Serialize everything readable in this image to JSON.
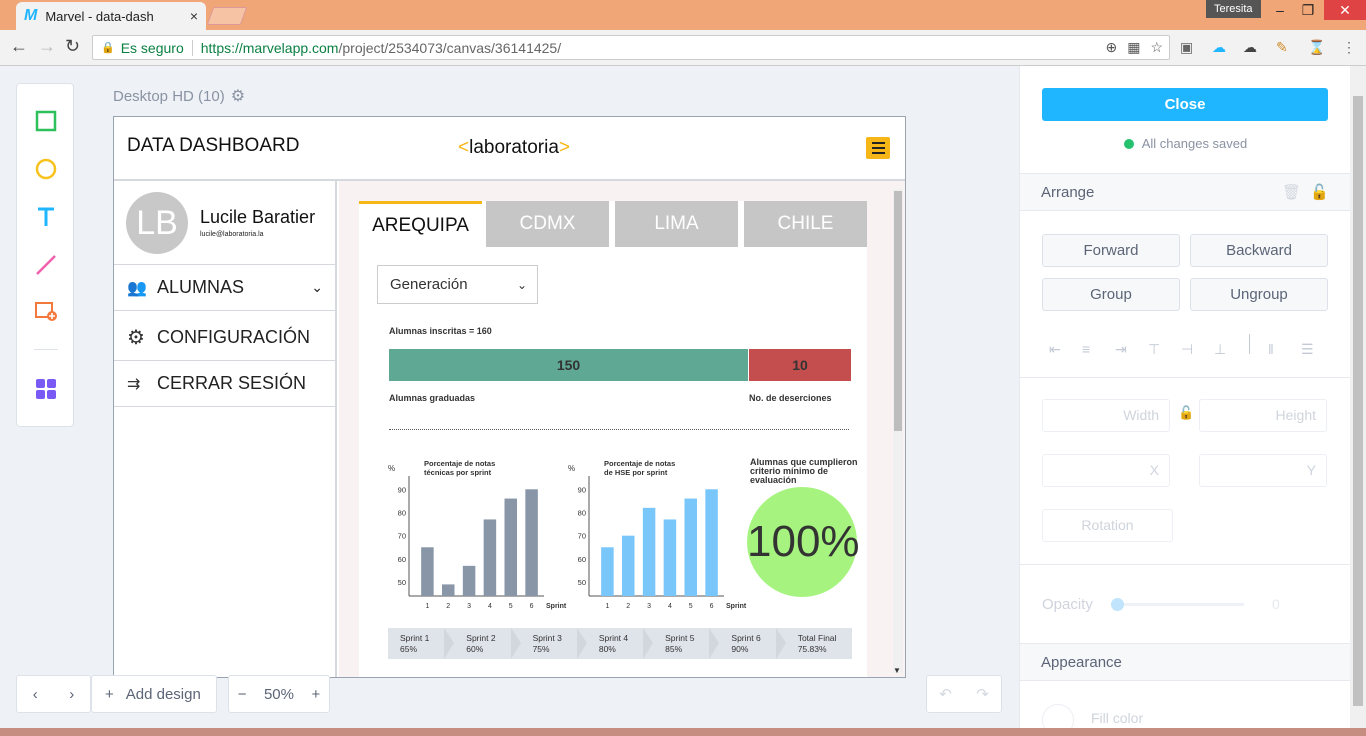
{
  "browser": {
    "tab_title": "Marvel - data-dash",
    "tab_close": "×",
    "window_user": "Teresita",
    "security_label": "Es seguro",
    "url_host": "https://marvelapp.com",
    "url_path": "/project/2534073/canvas/36141425/"
  },
  "canvas": {
    "frame_label": "Desktop HD (10)",
    "zoom": "50%",
    "add_design_label": "Add design"
  },
  "dashboard": {
    "title": "DATA DASHBOARD",
    "brand": "laboratoria",
    "user": {
      "initials": "LB",
      "name": "Lucile Baratier",
      "email": "lucile@laboratoria.la"
    },
    "menu": [
      {
        "label": "ALUMNAS"
      },
      {
        "label": "CONFIGURACIÓN"
      },
      {
        "label": "CERRAR SESIÓN"
      }
    ],
    "tabs": [
      "AREQUIPA",
      "CDMX",
      "LIMA",
      "CHILE"
    ],
    "generation_select": "Generación",
    "enrolled_label": "Alumnas inscritas = 160",
    "graduated_value": "150",
    "dropout_value": "10",
    "graduated_label": "Alumnas graduadas",
    "dropout_label": "No. de deserciones",
    "criteria_label_1": "Alumnas que cumplieron",
    "criteria_label_2": "criterio mínimo de evaluación",
    "criteria_value": "100%",
    "sprints": [
      {
        "name": "Sprint 1",
        "value": "65%"
      },
      {
        "name": "Sprint 2",
        "value": "60%"
      },
      {
        "name": "Sprint 3",
        "value": "75%"
      },
      {
        "name": "Sprint 4",
        "value": "80%"
      },
      {
        "name": "Sprint 5",
        "value": "85%"
      },
      {
        "name": "Sprint 6",
        "value": "90%"
      },
      {
        "name": "Total Final",
        "value": "75.83%"
      }
    ]
  },
  "chart_data": [
    {
      "type": "bar",
      "title": "Porcentaje de notas técnicas por sprint",
      "title_line1": "Porcentaje de notas",
      "title_line2": "técnicas por sprint",
      "ylabel": "%",
      "xlabel": "Sprint",
      "categories": [
        "1",
        "2",
        "3",
        "4",
        "5",
        "6"
      ],
      "values": [
        65,
        49,
        57,
        77,
        86,
        90
      ],
      "yticks": [
        50,
        60,
        70,
        80,
        90
      ],
      "ylim": [
        44,
        94
      ],
      "color": "#8896a8"
    },
    {
      "type": "bar",
      "title": "Porcentaje de HSE por sprint",
      "title_line1": "Porcentaje de notas",
      "title_line2": "de HSE por sprint",
      "ylabel": "%",
      "xlabel": "Sprint",
      "categories": [
        "1",
        "2",
        "3",
        "4",
        "5",
        "6"
      ],
      "values": [
        65,
        70,
        82,
        77,
        86,
        90
      ],
      "yticks": [
        50,
        60,
        70,
        80,
        90
      ],
      "ylim": [
        44,
        94
      ],
      "color": "#79c7fa"
    }
  ],
  "right_panel": {
    "close_label": "Close",
    "saved_label": "All changes saved",
    "arrange_label": "Arrange",
    "forward_label": "Forward",
    "backward_label": "Backward",
    "group_label": "Group",
    "ungroup_label": "Ungroup",
    "width_placeholder": "Width",
    "height_placeholder": "Height",
    "x_placeholder": "X",
    "y_placeholder": "Y",
    "rotation_placeholder": "Rotation",
    "opacity_label": "Opacity",
    "opacity_value": "0",
    "appearance_label": "Appearance",
    "fill_label": "Fill color"
  },
  "colors": {
    "accent": "#1fb6ff",
    "brand_yellow": "#f7b617",
    "graduated": "#5fa894",
    "dropout": "#c44e4e",
    "success": "#a6f47f"
  }
}
